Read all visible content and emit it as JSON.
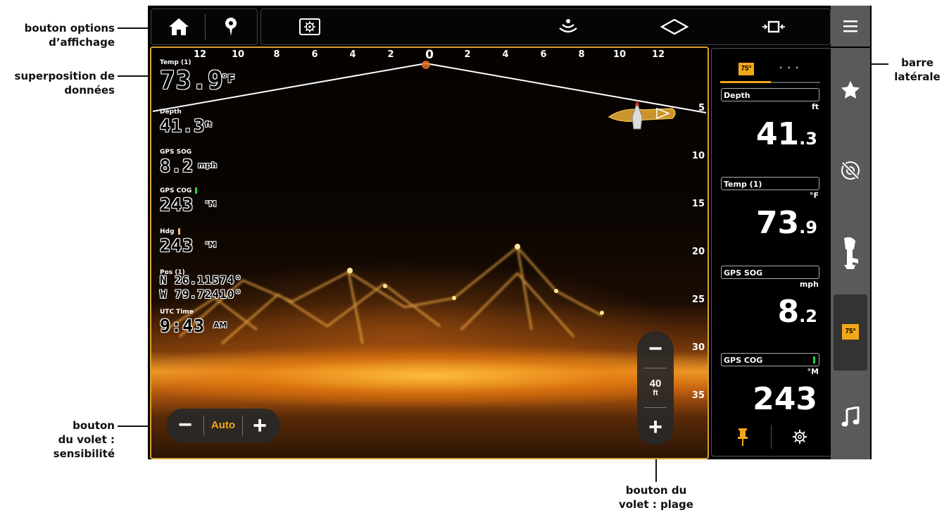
{
  "callouts": {
    "display_options": [
      "bouton options",
      "d’affichage"
    ],
    "data_overlay": [
      "superposition de",
      "données"
    ],
    "sidebar": [
      "barre",
      "latérale"
    ],
    "sensitivity": [
      "bouton",
      "du volet :",
      "sensibilité"
    ],
    "range": [
      "bouton du",
      "volet : plage"
    ]
  },
  "top_bar": {
    "icons": [
      "home-icon",
      "waypoint-icon",
      "display-options-icon",
      "sonar-icon",
      "boat-icon",
      "crop-icon",
      "menu-icon"
    ]
  },
  "horizontal_scale": [
    "12",
    "10",
    "8",
    "6",
    "4",
    "2",
    "0",
    "2",
    "4",
    "6",
    "8",
    "10",
    "12"
  ],
  "depth_scale": [
    "5",
    "10",
    "15",
    "20",
    "25",
    "30",
    "35"
  ],
  "overlay": {
    "temp": {
      "label": "Temp (1)",
      "value": "73.9",
      "unit": "°F"
    },
    "depth": {
      "label": "Depth",
      "value": "41.3",
      "unit": "ft"
    },
    "gps_sog": {
      "label": "GPS SOG",
      "value": "8.2",
      "unit": "mph"
    },
    "gps_cog": {
      "label": "GPS COG",
      "value": "243",
      "unit": "°M"
    },
    "hdg": {
      "label": "Hdg",
      "value": "243",
      "unit": "°M"
    },
    "pos": {
      "label": "Pos (1)",
      "lat": "N 26.11574°",
      "lon": "W 79.72410°"
    },
    "utc": {
      "label": "UTC Time",
      "value": "9:43",
      "unit": "AM"
    }
  },
  "sensitivity_control": {
    "minus": "−",
    "value": "Auto",
    "plus": "+"
  },
  "range_control": {
    "minus": "−",
    "value": "40",
    "unit": "ft",
    "plus": "+"
  },
  "sidebar": {
    "tab_badge": "75°",
    "tab_dots": "• • •",
    "items": [
      {
        "title": "Depth",
        "unit": "ft",
        "value_main": "41",
        "value_dec": ".3"
      },
      {
        "title": "Temp (1)",
        "unit": "°F",
        "value_main": "73",
        "value_dec": ".9"
      },
      {
        "title": "GPS SOG",
        "unit": "mph",
        "value_main": "8",
        "value_dec": ".2"
      },
      {
        "title": "GPS COG",
        "unit": "°M",
        "value_main": "243",
        "value_dec": ""
      }
    ]
  },
  "rail": {
    "icons": [
      "star-icon",
      "autopilot-icon",
      "outboard-motor-icon",
      "temperature-badge-icon",
      "music-icon"
    ],
    "badge": "75°"
  },
  "colors": {
    "accent": "#f2a71b",
    "frame": "#d9a230",
    "rail": "#5a5a5a"
  }
}
